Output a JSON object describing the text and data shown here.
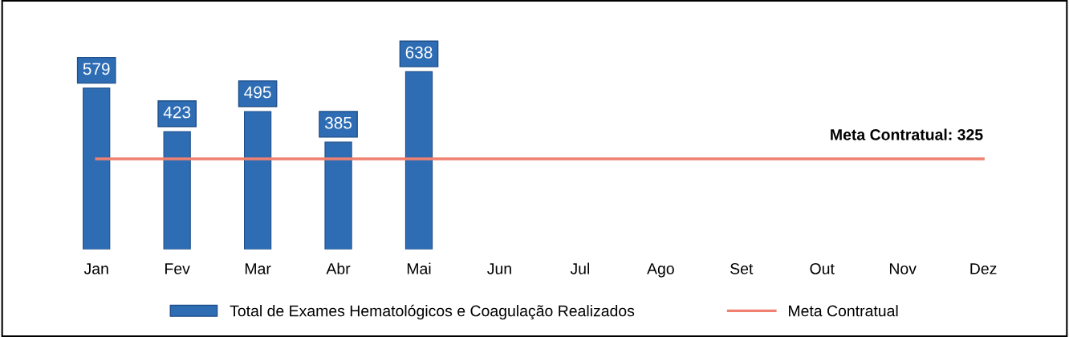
{
  "chart_data": {
    "type": "bar",
    "categories": [
      "Jan",
      "Fev",
      "Mar",
      "Abr",
      "Mai",
      "Jun",
      "Jul",
      "Ago",
      "Set",
      "Out",
      "Nov",
      "Dez"
    ],
    "series": [
      {
        "name": "Total de Exames Hematológicos e Coagulação Realizados",
        "color": "#2e6db4",
        "values": [
          579,
          423,
          495,
          385,
          638,
          null,
          null,
          null,
          null,
          null,
          null,
          null
        ],
        "value_labels": [
          "579",
          "423",
          "495",
          "385",
          "638",
          null,
          null,
          null,
          null,
          null,
          null,
          null
        ]
      },
      {
        "name": "Meta Contratual",
        "type": "line",
        "color": "#f08070",
        "values": [
          325,
          325,
          325,
          325,
          325,
          325,
          325,
          325,
          325,
          325,
          325,
          325
        ]
      }
    ],
    "tick_labels": "x",
    "grid": false,
    "legend": "bottom",
    "annotations": [
      {
        "text": "Meta Contratual: 325",
        "x": "Dez",
        "y": 325
      }
    ]
  }
}
